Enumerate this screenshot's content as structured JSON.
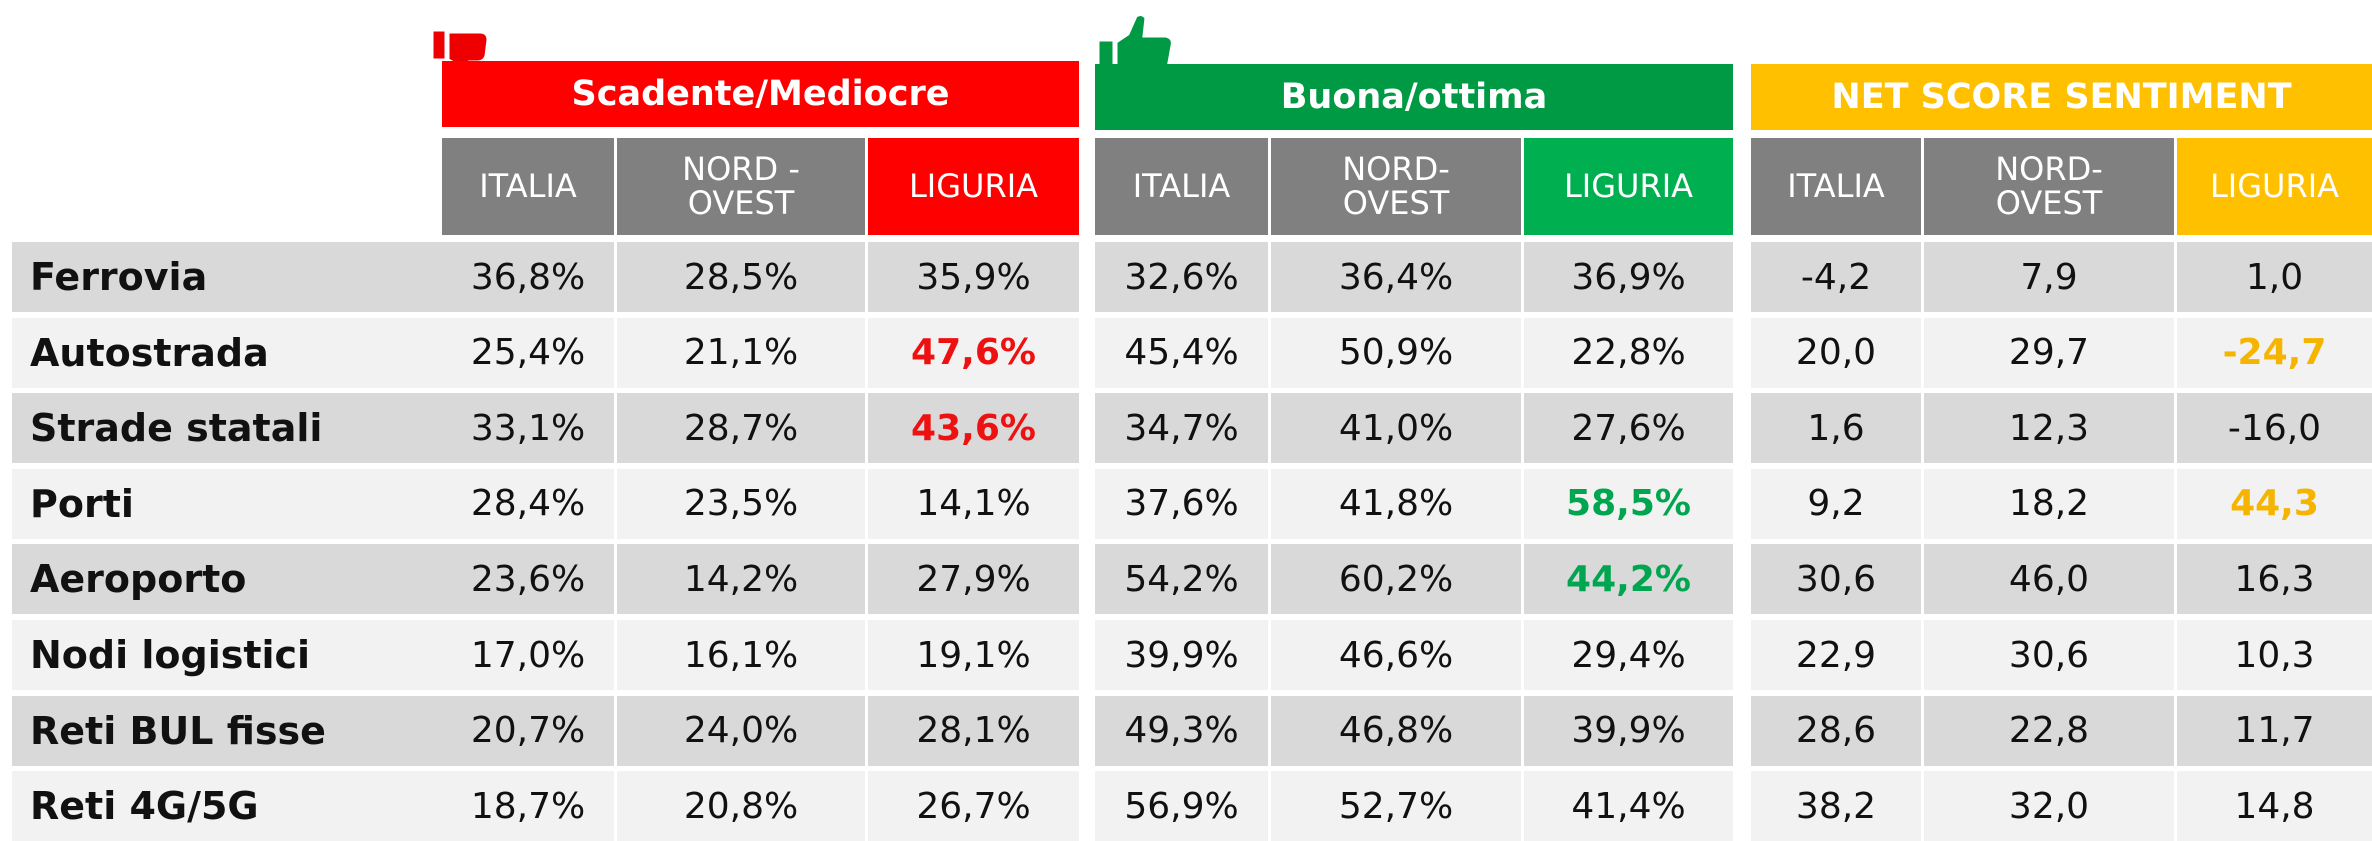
{
  "table": {
    "groups": [
      {
        "title": "Scadente/Mediocre",
        "columns": [
          "ITALIA",
          "NORD - OVEST",
          "LIGURIA"
        ]
      },
      {
        "title": "Buona/ottima",
        "columns": [
          "ITALIA",
          "NORD-OVEST",
          "LIGURIA"
        ]
      },
      {
        "title": "NET SCORE SENTIMENT",
        "columns": [
          "ITALIA",
          "NORD-OVEST",
          "LIGURIA"
        ]
      }
    ],
    "rows": [
      {
        "label": "Ferrovia",
        "values": [
          "36,8%",
          "28,5%",
          "35,9%",
          "32,6%",
          "36,4%",
          "36,9%",
          "-4,2",
          "7,9",
          "1,0"
        ]
      },
      {
        "label": "Autostrada",
        "values": [
          "25,4%",
          "21,1%",
          "47,6%",
          "45,4%",
          "50,9%",
          "22,8%",
          "20,0",
          "29,7",
          "-24,7"
        ]
      },
      {
        "label": "Strade statali",
        "values": [
          "33,1%",
          "28,7%",
          "43,6%",
          "34,7%",
          "41,0%",
          "27,6%",
          "1,6",
          "12,3",
          "-16,0"
        ]
      },
      {
        "label": "Porti",
        "values": [
          "28,4%",
          "23,5%",
          "14,1%",
          "37,6%",
          "41,8%",
          "58,5%",
          "9,2",
          "18,2",
          "44,3"
        ]
      },
      {
        "label": "Aeroporto",
        "values": [
          "23,6%",
          "14,2%",
          "27,9%",
          "54,2%",
          "60,2%",
          "44,2%",
          "30,6",
          "46,0",
          "16,3"
        ]
      },
      {
        "label": "Nodi logistici",
        "values": [
          "17,0%",
          "16,1%",
          "19,1%",
          "39,9%",
          "46,6%",
          "29,4%",
          "22,9",
          "30,6",
          "10,3"
        ]
      },
      {
        "label": "Reti BUL fisse",
        "values": [
          "20,7%",
          "24,0%",
          "28,1%",
          "49,3%",
          "46,8%",
          "39,9%",
          "28,6",
          "22,8",
          "11,7"
        ]
      },
      {
        "label": "Reti 4G/5G",
        "values": [
          "18,7%",
          "20,8%",
          "26,7%",
          "56,9%",
          "52,7%",
          "41,4%",
          "38,2",
          "32,0",
          "14,8"
        ]
      }
    ]
  }
}
